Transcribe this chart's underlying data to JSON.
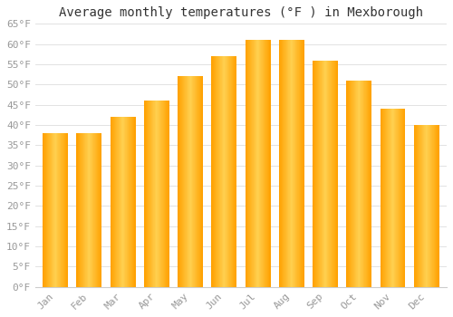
{
  "title": "Average monthly temperatures (°F ) in Mexborough",
  "months": [
    "Jan",
    "Feb",
    "Mar",
    "Apr",
    "May",
    "Jun",
    "Jul",
    "Aug",
    "Sep",
    "Oct",
    "Nov",
    "Dec"
  ],
  "values": [
    38,
    38,
    42,
    46,
    52,
    57,
    61,
    61,
    56,
    51,
    44,
    40
  ],
  "bar_color_center": "#FFD050",
  "bar_color_edge": "#FFA000",
  "ylim": [
    0,
    65
  ],
  "yticks": [
    0,
    5,
    10,
    15,
    20,
    25,
    30,
    35,
    40,
    45,
    50,
    55,
    60,
    65
  ],
  "ytick_labels": [
    "0°F",
    "5°F",
    "10°F",
    "15°F",
    "20°F",
    "25°F",
    "30°F",
    "35°F",
    "40°F",
    "45°F",
    "50°F",
    "55°F",
    "60°F",
    "65°F"
  ],
  "background_color": "#FFFFFF",
  "plot_bg_color": "#FFFFFF",
  "grid_color": "#DDDDDD",
  "title_fontsize": 10,
  "tick_fontsize": 8,
  "tick_color": "#999999",
  "font_family": "monospace",
  "bar_width": 0.75,
  "num_gradient_slices": 50
}
